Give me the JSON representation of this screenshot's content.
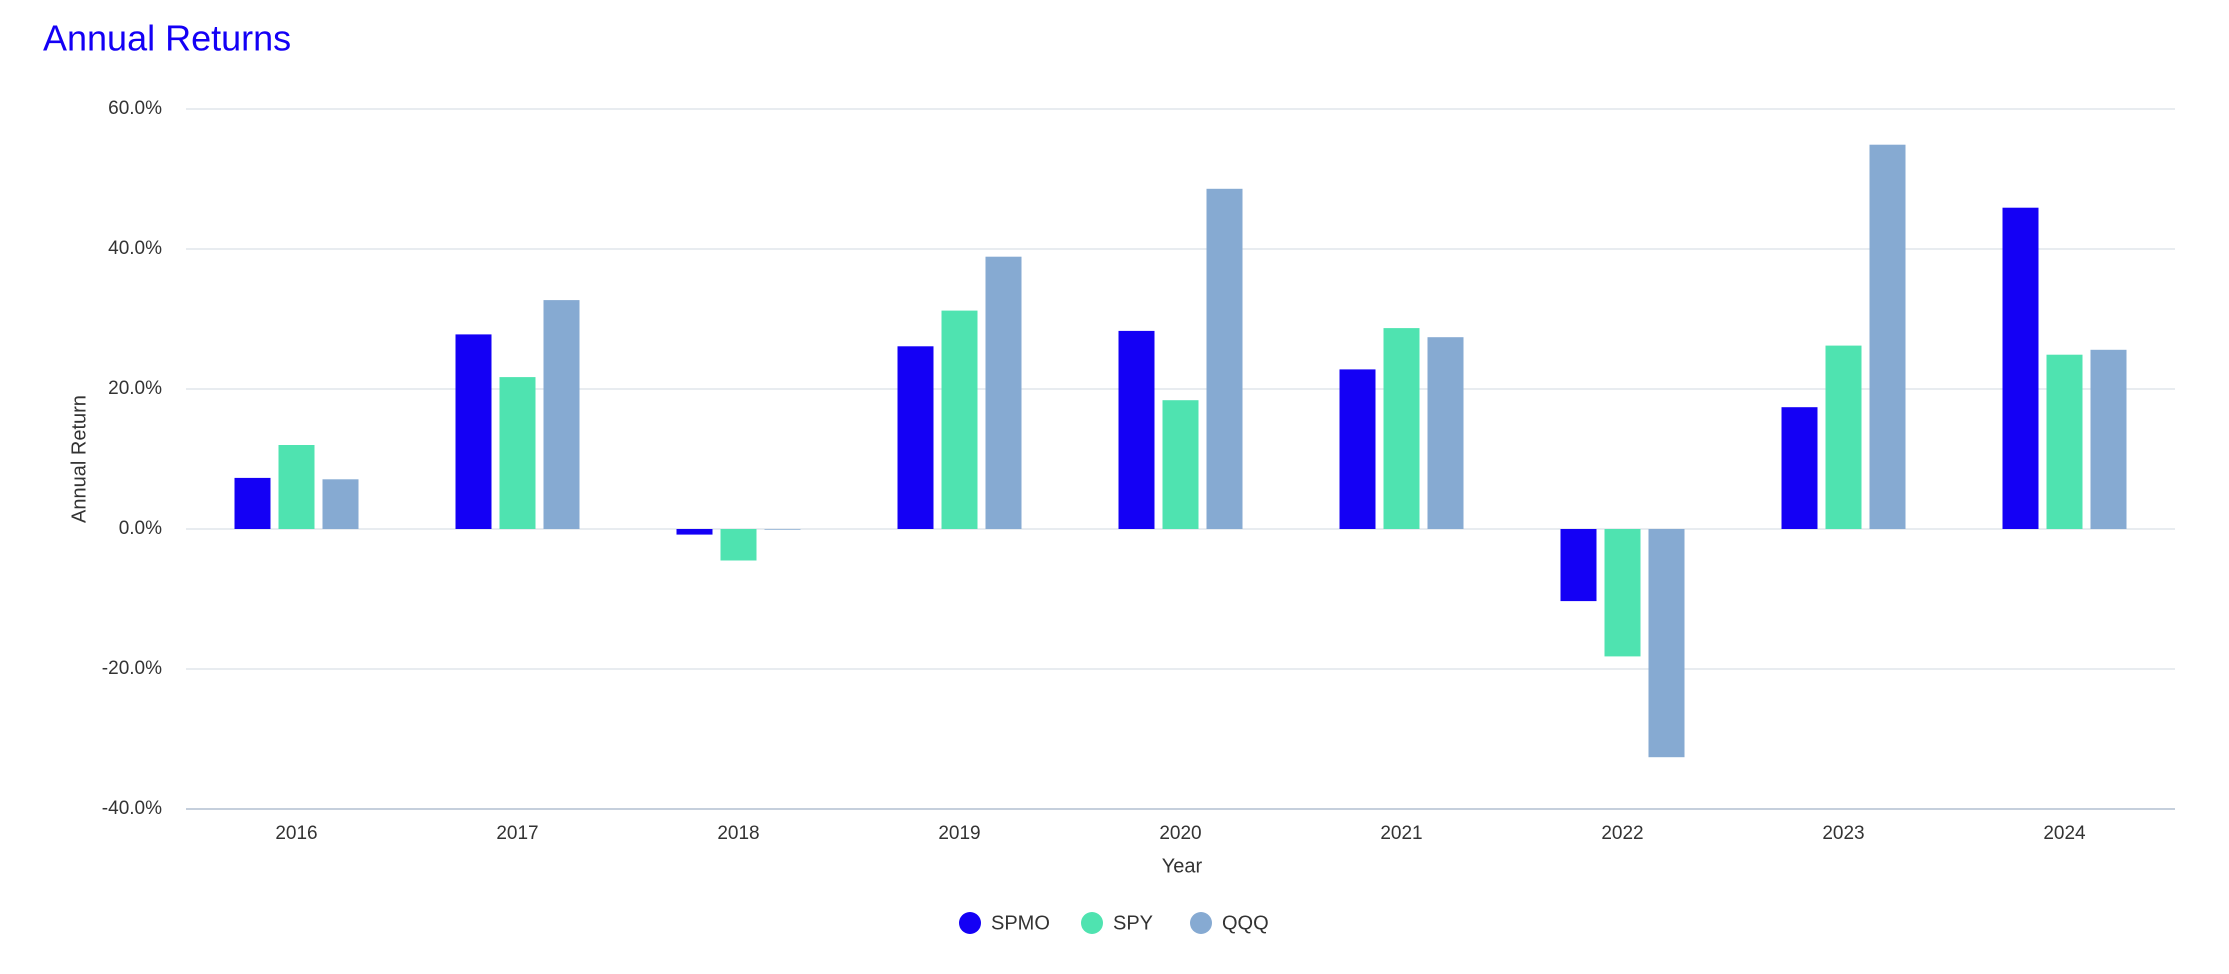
{
  "chart_data": {
    "type": "bar",
    "title": "Annual Returns",
    "x_label": "Year",
    "y_label": "Annual Return",
    "categories": [
      "2016",
      "2017",
      "2018",
      "2019",
      "2020",
      "2021",
      "2022",
      "2023",
      "2024"
    ],
    "series": [
      {
        "name": "SPMO",
        "color": "#1400f5",
        "values": [
          7.3,
          27.8,
          -0.8,
          26.1,
          28.3,
          22.8,
          -10.3,
          17.4,
          45.9
        ]
      },
      {
        "name": "SPY",
        "color": "#4fe3b0",
        "values": [
          12.0,
          21.7,
          -4.5,
          31.2,
          18.4,
          28.7,
          -18.2,
          26.2,
          24.9
        ]
      },
      {
        "name": "QQQ",
        "color": "#86aad2",
        "values": [
          7.1,
          32.7,
          -0.1,
          38.9,
          48.6,
          27.4,
          -32.6,
          54.9,
          25.6
        ]
      }
    ],
    "ylim": [
      -40,
      60
    ],
    "yticks": [
      {
        "value": -40,
        "label": "-40.0%"
      },
      {
        "value": -20,
        "label": "-20.0%"
      },
      {
        "value": 0,
        "label": "0.0%"
      },
      {
        "value": 20,
        "label": "20.0%"
      },
      {
        "value": 40,
        "label": "40.0%"
      },
      {
        "value": 60,
        "label": "60.0%"
      }
    ],
    "grid": true,
    "legend": "bottom"
  }
}
